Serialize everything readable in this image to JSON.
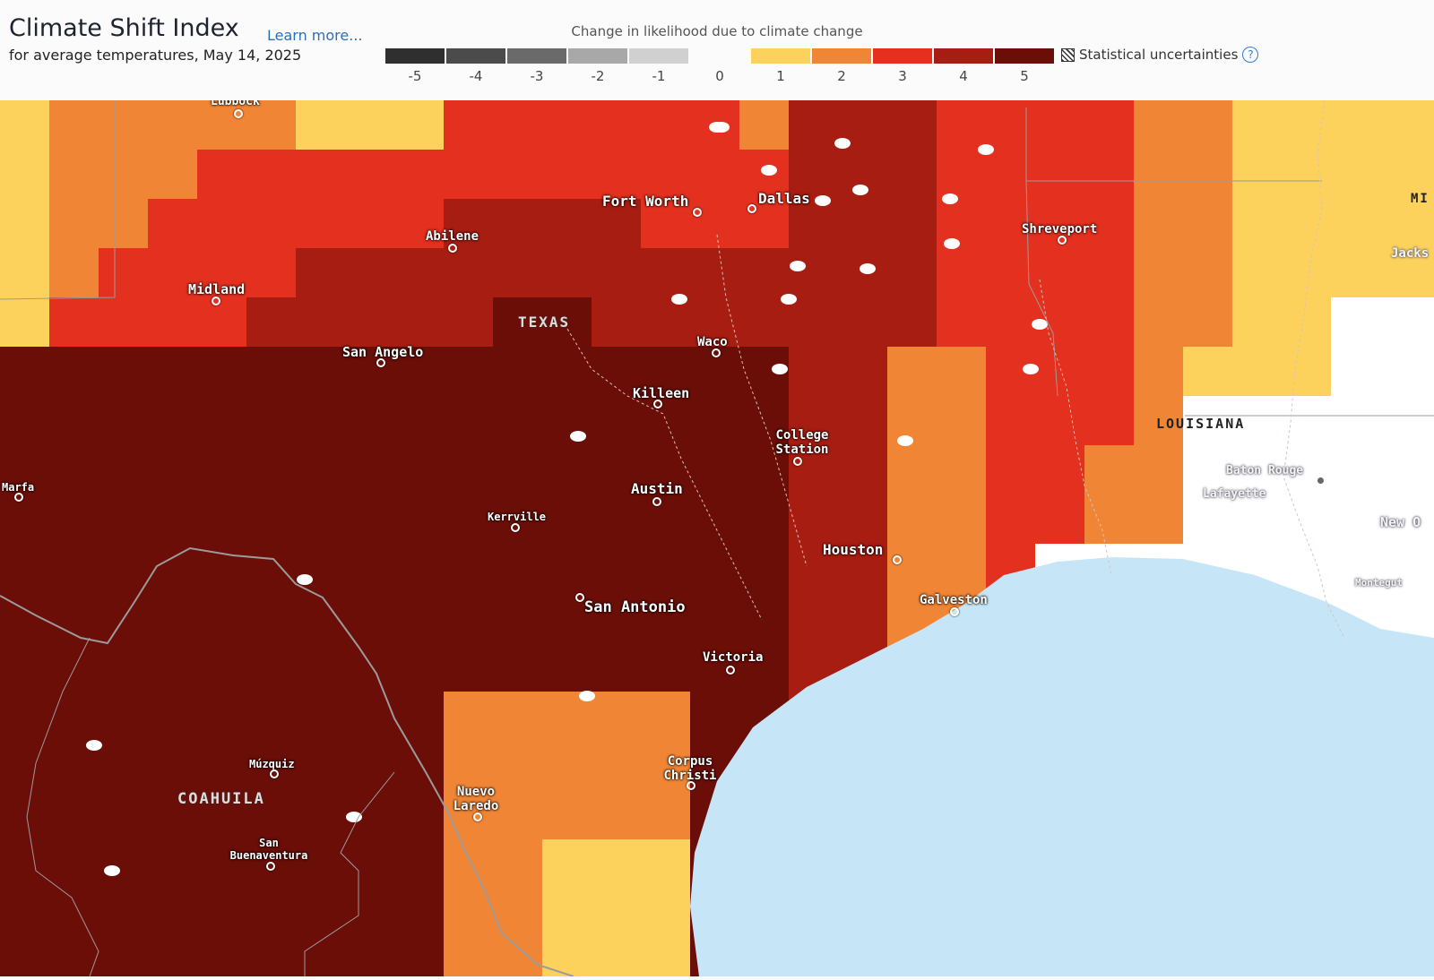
{
  "header": {
    "title": "Climate Shift Index",
    "learn_more": "Learn more...",
    "subtitle": "for average temperatures, May 14, 2025"
  },
  "legend": {
    "caption": "Change in likelihood due to climate change",
    "ticks": [
      "-5",
      "-4",
      "-3",
      "-2",
      "-1",
      "0",
      "1",
      "2",
      "3",
      "4",
      "5"
    ],
    "swatches": [
      {
        "level": -5,
        "color": "#2f2f2f"
      },
      {
        "level": -4,
        "color": "#4b4b4b"
      },
      {
        "level": -3,
        "color": "#6a6a6a"
      },
      {
        "level": -2,
        "color": "#a8a8a8"
      },
      {
        "level": -1,
        "color": "#d0d0d0"
      },
      {
        "level": 0,
        "color": "#fbfbfb"
      },
      {
        "level": 1,
        "color": "#fdd25c"
      },
      {
        "level": 2,
        "color": "#f08535"
      },
      {
        "level": 3,
        "color": "#e3301f"
      },
      {
        "level": 4,
        "color": "#a81d12"
      },
      {
        "level": 5,
        "color": "#6b0e08"
      }
    ],
    "uncertainty_label": "Statistical uncertainties",
    "help_icon": "help-icon"
  },
  "map": {
    "colors": {
      "ocean": "#c6e6f7",
      "land": "#ffffff",
      "lake": "#ffffff",
      "border": "#9b9b9b",
      "river": "#d8c2bb"
    },
    "cities": [
      {
        "name": "Lubbock"
      },
      {
        "name": "Fort Worth"
      },
      {
        "name": "Dallas"
      },
      {
        "name": "Abilene"
      },
      {
        "name": "Shreveport"
      },
      {
        "name": "Midland"
      },
      {
        "name": "San Angelo"
      },
      {
        "name": "Waco"
      },
      {
        "name": "Killeen"
      },
      {
        "name": "College Station"
      },
      {
        "name": "Marfa"
      },
      {
        "name": "Austin"
      },
      {
        "name": "Kerrville"
      },
      {
        "name": "Houston"
      },
      {
        "name": "San Antonio"
      },
      {
        "name": "Galveston"
      },
      {
        "name": "Victoria"
      },
      {
        "name": "Corpus Christi"
      },
      {
        "name": "Múzquiz"
      },
      {
        "name": "Nuevo Laredo"
      },
      {
        "name": "San Buenaventura"
      },
      {
        "name": "Baton Rouge"
      },
      {
        "name": "Lafayette"
      },
      {
        "name": "New O"
      },
      {
        "name": "Montegut"
      },
      {
        "name": "Jacks"
      },
      {
        "name": "MI"
      }
    ],
    "regions": [
      {
        "name": "TEXAS"
      },
      {
        "name": "LOUISIANA"
      },
      {
        "name": "COAHUILA"
      }
    ]
  }
}
